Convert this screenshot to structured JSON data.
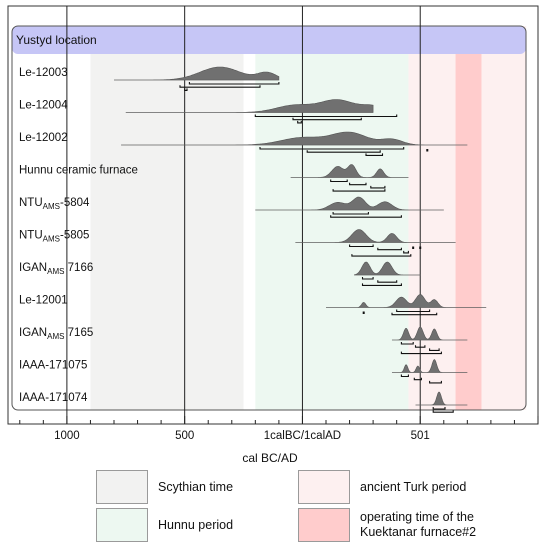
{
  "chart_data": {
    "type": "area",
    "header": "Yustyd location",
    "xlabel": "cal BC/AD",
    "x_ticks": [
      "1000",
      "500",
      "1calBC/1calAD",
      "501"
    ],
    "xlim_years": [
      -1250,
      1000
    ],
    "periods": [
      {
        "name": "Scythian time",
        "from": -900,
        "to": -250,
        "color": "#f2f2f1"
      },
      {
        "name": "Hunnu period",
        "from": -200,
        "to": 450,
        "color": "#edf8f1"
      },
      {
        "name": "ancient Turk period",
        "from": 450,
        "to": 950,
        "color": "#fdf0f0"
      },
      {
        "name": "operating time of the Kuektanar furnace#2",
        "from": 650,
        "to": 760,
        "color": "#ffcccc"
      }
    ],
    "samples": [
      {
        "label": "Le-12003",
        "range": [
          -800,
          -100
        ],
        "peaks": [
          [
            -350,
            170,
            1
          ],
          [
            -150,
            80,
            0.55
          ]
        ],
        "brackets": [
          [
            -480,
            -100
          ],
          [
            -520,
            -180
          ],
          [
            -500,
            -490
          ]
        ],
        "dots": []
      },
      {
        "label": "Le-12004",
        "range": [
          -750,
          300
        ],
        "peaks": [
          [
            -30,
            160,
            0.6
          ],
          [
            150,
            140,
            1
          ],
          [
            300,
            100,
            0.5
          ]
        ],
        "brackets": [
          [
            -200,
            400
          ],
          [
            -40,
            250
          ],
          [
            -20,
            -5
          ]
        ],
        "dots": []
      },
      {
        "label": "Le-12002",
        "range": [
          -770,
          700
        ],
        "peaks": [
          [
            0,
            180,
            0.6
          ],
          [
            200,
            150,
            1
          ],
          [
            380,
            90,
            0.45
          ]
        ],
        "brackets": [
          [
            -180,
            430
          ],
          [
            20,
            330
          ],
          [
            270,
            340
          ]
        ],
        "dots": [
          530
        ]
      },
      {
        "label": "Hunnu ceramic furnace",
        "subs": [],
        "range": [
          -50,
          450
        ],
        "peaks": [
          [
            150,
            50,
            0.9
          ],
          [
            210,
            35,
            1
          ],
          [
            330,
            30,
            0.7
          ]
        ],
        "brackets": [
          [
            120,
            190
          ],
          [
            200,
            270
          ],
          [
            290,
            350
          ],
          [
            130,
            350
          ]
        ],
        "dots": []
      },
      {
        "label": "NTU",
        "sub": "AMS",
        "after": "-5804",
        "range": [
          -200,
          600
        ],
        "peaks": [
          [
            150,
            70,
            0.6
          ],
          [
            240,
            55,
            1
          ],
          [
            350,
            60,
            0.65
          ]
        ],
        "brackets": [
          [
            130,
            280
          ],
          [
            120,
            420
          ]
        ],
        "dots": []
      },
      {
        "label": "NTU",
        "sub": "AMS",
        "after": "-5805",
        "range": [
          -30,
          650
        ],
        "peaks": [
          [
            240,
            60,
            1
          ],
          [
            380,
            40,
            0.7
          ]
        ],
        "brackets": [
          [
            200,
            300
          ],
          [
            320,
            420
          ],
          [
            430,
            450
          ],
          [
            210,
            460
          ]
        ],
        "dots": [
          470,
          500
        ]
      },
      {
        "label": "IGAN",
        "sub": "AMS",
        "after": " 7166",
        "range": [
          220,
          500
        ],
        "peaks": [
          [
            270,
            35,
            1
          ],
          [
            360,
            40,
            1
          ]
        ],
        "brackets": [
          [
            255,
            300
          ],
          [
            320,
            400
          ],
          [
            255,
            420
          ]
        ],
        "dots": []
      },
      {
        "label": "Le-12001",
        "range": [
          100,
          780
        ],
        "peaks": [
          [
            260,
            18,
            0.4
          ],
          [
            420,
            45,
            0.8
          ],
          [
            500,
            40,
            1
          ],
          [
            560,
            30,
            0.6
          ]
        ],
        "brackets": [
          [
            400,
            540
          ],
          [
            380,
            570
          ]
        ],
        "dots": [
          260
        ]
      },
      {
        "label": "IGAN",
        "sub": "AMS",
        "after": " 7165",
        "range": [
          380,
          700
        ],
        "peaks": [
          [
            440,
            22,
            0.9
          ],
          [
            500,
            25,
            1
          ],
          [
            560,
            22,
            0.85
          ]
        ],
        "brackets": [
          [
            420,
            470
          ],
          [
            480,
            520
          ],
          [
            540,
            580
          ],
          [
            420,
            590
          ]
        ],
        "dots": []
      },
      {
        "label": "IAAA-171075",
        "range": [
          380,
          700
        ],
        "peaks": [
          [
            440,
            15,
            0.6
          ],
          [
            490,
            15,
            0.5
          ],
          [
            560,
            20,
            1
          ]
        ],
        "brackets": [
          [
            420,
            450
          ],
          [
            475,
            505
          ],
          [
            540,
            590
          ]
        ],
        "dots": []
      },
      {
        "label": "IAAA-171074",
        "range": [
          480,
          700
        ],
        "peaks": [
          [
            580,
            20,
            1
          ]
        ],
        "brackets": [
          [
            555,
            605
          ],
          [
            555,
            640
          ]
        ],
        "dots": []
      }
    ]
  },
  "legend": [
    {
      "label": "Scythian time",
      "color": "#f2f2f1"
    },
    {
      "label": "ancient Turk period",
      "color": "#fdf0f0"
    },
    {
      "label": "Hunnu period",
      "color": "#edf8f1"
    },
    {
      "label": "operating time of the\nKuektanar furnace#2",
      "color": "#ffcccc"
    }
  ]
}
